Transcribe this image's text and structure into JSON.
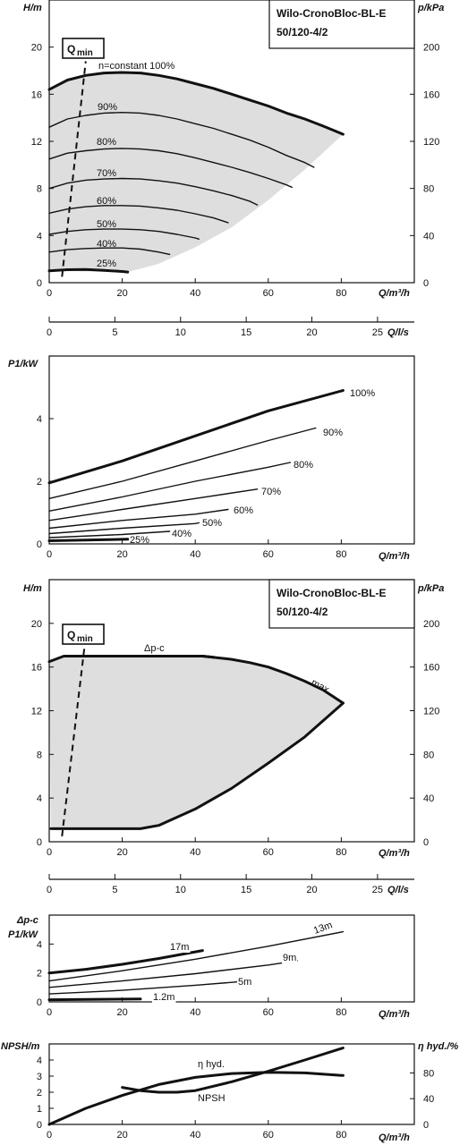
{
  "chart_data": [
    {
      "type": "line",
      "title": "Wilo-CronoBloc-BL-E",
      "subtitle": "50/120-4/2",
      "xlabel": "Q/m³/h",
      "ylabel": "H/m",
      "y2label": "p/kPa",
      "xlim": [
        0,
        100
      ],
      "ylim": [
        0,
        24
      ],
      "y2lim": [
        0,
        240
      ],
      "xticks": [
        0,
        20,
        40,
        60,
        80
      ],
      "yticks": [
        0,
        4,
        8,
        12,
        16,
        20
      ],
      "y2ticks": [
        0,
        40,
        80,
        120,
        160,
        200
      ],
      "qmin_label": "Q",
      "qmin_sub": "min",
      "qmin_line": [
        [
          3.5,
          0.5
        ],
        [
          10,
          18.8
        ]
      ],
      "series": [
        {
          "name": "n=constant 100%",
          "bold": true,
          "x": [
            0,
            5,
            10,
            15,
            20,
            25,
            30,
            35,
            40,
            45,
            50,
            55,
            60,
            65,
            70,
            75,
            80.5
          ],
          "y": [
            16.4,
            17.2,
            17.6,
            17.8,
            17.85,
            17.8,
            17.6,
            17.3,
            16.9,
            16.5,
            16.0,
            15.5,
            15.0,
            14.4,
            13.9,
            13.3,
            12.6
          ]
        },
        {
          "name": "90%",
          "x": [
            0,
            5,
            10,
            15,
            20,
            25,
            30,
            35,
            40,
            45,
            50,
            55,
            60,
            65,
            70,
            72.5
          ],
          "y": [
            13.2,
            13.9,
            14.2,
            14.4,
            14.45,
            14.4,
            14.2,
            13.9,
            13.5,
            13.1,
            12.6,
            12.1,
            11.5,
            10.8,
            10.2,
            9.8
          ]
        },
        {
          "name": "80%",
          "x": [
            0,
            5,
            10,
            15,
            20,
            25,
            30,
            35,
            40,
            45,
            50,
            55,
            60,
            65,
            66.5
          ],
          "y": [
            10.5,
            11.0,
            11.2,
            11.35,
            11.4,
            11.35,
            11.2,
            10.95,
            10.6,
            10.2,
            9.8,
            9.35,
            8.85,
            8.3,
            8.1
          ]
        },
        {
          "name": "70%",
          "x": [
            0,
            5,
            10,
            15,
            20,
            25,
            30,
            35,
            40,
            45,
            50,
            55,
            57
          ],
          "y": [
            8.0,
            8.45,
            8.7,
            8.8,
            8.85,
            8.8,
            8.65,
            8.45,
            8.15,
            7.8,
            7.4,
            6.9,
            6.6
          ]
        },
        {
          "name": "60%",
          "x": [
            0,
            5,
            10,
            15,
            20,
            25,
            30,
            35,
            40,
            45,
            49
          ],
          "y": [
            5.9,
            6.25,
            6.45,
            6.55,
            6.55,
            6.5,
            6.35,
            6.15,
            5.85,
            5.5,
            5.1
          ]
        },
        {
          "name": "50%",
          "x": [
            0,
            5,
            10,
            15,
            20,
            25,
            30,
            35,
            40,
            41
          ],
          "y": [
            4.1,
            4.35,
            4.5,
            4.55,
            4.55,
            4.5,
            4.35,
            4.1,
            3.8,
            3.7
          ]
        },
        {
          "name": "40%",
          "x": [
            0,
            5,
            10,
            15,
            20,
            25,
            30,
            33
          ],
          "y": [
            2.6,
            2.8,
            2.9,
            2.95,
            2.95,
            2.85,
            2.6,
            2.4
          ]
        },
        {
          "name": "25%",
          "bold": true,
          "x": [
            0,
            5,
            10,
            15,
            20,
            21.5
          ],
          "y": [
            1.0,
            1.1,
            1.12,
            1.05,
            0.95,
            0.9
          ]
        }
      ],
      "shaded_region": {
        "upper_x": [
          0,
          5,
          10,
          15,
          20,
          25,
          30,
          35,
          40,
          45,
          50,
          55,
          60,
          65,
          70,
          75,
          80.5
        ],
        "upper_y": [
          16.4,
          17.2,
          17.6,
          17.8,
          17.85,
          17.8,
          17.6,
          17.3,
          16.9,
          16.5,
          16.0,
          15.5,
          15.0,
          14.4,
          13.9,
          13.3,
          12.6
        ],
        "lower_x": [
          80.5,
          70,
          60,
          50,
          40,
          30,
          21.5,
          0
        ],
        "lower_y": [
          12.6,
          9.6,
          7.0,
          4.7,
          3.0,
          1.6,
          0.9,
          1.0
        ]
      }
    },
    {
      "type": "axis",
      "xlabel": "Q/l/s",
      "xlim": [
        0,
        27.8
      ],
      "xticks": [
        0,
        5,
        10,
        15,
        20,
        25
      ]
    },
    {
      "type": "line",
      "xlabel": "Q/m³/h",
      "ylabel": "P1/kW",
      "xlim": [
        0,
        100
      ],
      "ylim": [
        0,
        6
      ],
      "xticks": [
        0,
        20,
        40,
        60,
        80
      ],
      "yticks": [
        0,
        2,
        4
      ],
      "series": [
        {
          "name": "100%",
          "bold": true,
          "x": [
            0,
            20,
            40,
            60,
            80.5
          ],
          "y": [
            1.95,
            2.65,
            3.45,
            4.25,
            4.9
          ]
        },
        {
          "name": "90%",
          "x": [
            0,
            20,
            40,
            60,
            73
          ],
          "y": [
            1.45,
            2.0,
            2.65,
            3.3,
            3.7
          ]
        },
        {
          "name": "80%",
          "x": [
            0,
            20,
            40,
            60,
            66
          ],
          "y": [
            1.05,
            1.5,
            2.0,
            2.45,
            2.6
          ]
        },
        {
          "name": "70%",
          "x": [
            0,
            20,
            40,
            57
          ],
          "y": [
            0.75,
            1.1,
            1.45,
            1.75
          ]
        },
        {
          "name": "60%",
          "x": [
            0,
            20,
            40,
            49
          ],
          "y": [
            0.5,
            0.75,
            0.95,
            1.1
          ]
        },
        {
          "name": "50%",
          "x": [
            0,
            20,
            40,
            41
          ],
          "y": [
            0.33,
            0.5,
            0.65,
            0.67
          ]
        },
        {
          "name": "40%",
          "x": [
            0,
            20,
            33
          ],
          "y": [
            0.2,
            0.3,
            0.4
          ]
        },
        {
          "name": "25%",
          "bold": true,
          "x": [
            0,
            21.5
          ],
          "y": [
            0.1,
            0.15
          ]
        }
      ]
    },
    {
      "type": "line",
      "title": "Wilo-CronoBloc-BL-E",
      "subtitle": "50/120-4/2",
      "xlabel": "Q/m³/h",
      "ylabel": "H/m",
      "y2label": "p/kPa",
      "xlim": [
        0,
        100
      ],
      "ylim": [
        0,
        24
      ],
      "y2lim": [
        0,
        240
      ],
      "xticks": [
        0,
        20,
        40,
        60,
        80
      ],
      "yticks": [
        0,
        4,
        8,
        12,
        16,
        20
      ],
      "y2ticks": [
        0,
        40,
        80,
        120,
        160,
        200
      ],
      "qmin_label": "Q",
      "qmin_sub": "min",
      "qmin_line": [
        [
          3.5,
          0.5
        ],
        [
          10,
          18.8
        ]
      ],
      "series": [
        {
          "name": "Δp-c",
          "bold": true,
          "x": [
            0,
            4,
            10,
            20,
            30,
            42,
            45
          ],
          "y": [
            16.5,
            17.0,
            17.0,
            17.0,
            17.0,
            17.0,
            16.9
          ]
        },
        {
          "name": "max.",
          "bold": true,
          "x": [
            42,
            50,
            55,
            60,
            65,
            70,
            75,
            80.5
          ],
          "y": [
            17.0,
            16.7,
            16.4,
            16.0,
            15.4,
            14.7,
            13.9,
            12.7
          ]
        },
        {
          "name": "",
          "bold": true,
          "x": [
            0.5,
            10,
            20,
            25,
            30,
            40,
            50,
            60,
            70,
            80.5
          ],
          "y": [
            1.2,
            1.2,
            1.2,
            1.2,
            1.5,
            3.0,
            4.9,
            7.2,
            9.6,
            12.7
          ]
        }
      ],
      "shaded_region": {
        "upper_x": [
          0,
          4,
          10,
          20,
          30,
          42,
          50,
          55,
          60,
          65,
          70,
          75,
          80.5
        ],
        "upper_y": [
          16.5,
          17.0,
          17.0,
          17.0,
          17.0,
          17.0,
          16.7,
          16.4,
          16.0,
          15.4,
          14.7,
          13.9,
          12.7
        ],
        "lower_x": [
          80.5,
          70,
          60,
          50,
          40,
          30,
          25,
          0.5
        ],
        "lower_y": [
          12.7,
          9.6,
          7.2,
          4.9,
          3.0,
          1.5,
          1.2,
          1.2
        ]
      }
    },
    {
      "type": "axis",
      "xlabel": "Q/l/s",
      "xlim": [
        0,
        27.8
      ],
      "xticks": [
        0,
        5,
        10,
        15,
        20,
        25
      ]
    },
    {
      "type": "line",
      "xlabel": "Q/m³/h",
      "ylabel": "P1/kW",
      "ylabel_top": "Δp-c",
      "xlim": [
        0,
        100
      ],
      "ylim": [
        0,
        6
      ],
      "xticks": [
        0,
        20,
        40,
        60,
        80
      ],
      "yticks": [
        0,
        2,
        4
      ],
      "series": [
        {
          "name": "17m",
          "bold": true,
          "x": [
            0,
            10,
            20,
            30,
            42
          ],
          "y": [
            2.0,
            2.25,
            2.6,
            3.0,
            3.55
          ]
        },
        {
          "name": "13m",
          "x": [
            0,
            20,
            40,
            60,
            80.5
          ],
          "y": [
            1.45,
            2.15,
            2.95,
            3.85,
            4.85
          ]
        },
        {
          "name": "9m",
          "x": [
            0,
            20,
            40,
            60,
            68
          ],
          "y": [
            1.0,
            1.45,
            1.95,
            2.55,
            2.85
          ]
        },
        {
          "name": "5m",
          "x": [
            0,
            20,
            40,
            55
          ],
          "y": [
            0.55,
            0.8,
            1.15,
            1.45
          ]
        },
        {
          "name": "1.2m",
          "bold": true,
          "x": [
            0,
            25
          ],
          "y": [
            0.15,
            0.2
          ]
        }
      ]
    },
    {
      "type": "line",
      "xlabel": "Q/m³/h",
      "ylabel": "NPSH/m",
      "y2label": "η hyd./%",
      "xlim": [
        0,
        100
      ],
      "ylim": [
        0,
        5
      ],
      "y2lim": [
        0,
        125
      ],
      "xticks": [
        0,
        20,
        40,
        60,
        80
      ],
      "yticks": [
        0,
        1,
        2,
        3,
        4
      ],
      "y2ticks": [
        0,
        40,
        80
      ],
      "series": [
        {
          "name": "η hyd.",
          "axis": "right",
          "bold": true,
          "x": [
            0,
            10,
            20,
            30,
            40,
            50,
            60,
            70,
            80.5
          ],
          "y": [
            0,
            25,
            45,
            62,
            73,
            79,
            81,
            80,
            76
          ]
        },
        {
          "name": "NPSH",
          "axis": "left",
          "bold": true,
          "x": [
            20,
            25,
            30,
            35,
            40,
            50,
            60,
            70,
            80.5
          ],
          "y": [
            2.3,
            2.1,
            2.0,
            2.0,
            2.1,
            2.65,
            3.3,
            4.0,
            4.75
          ]
        }
      ]
    }
  ]
}
